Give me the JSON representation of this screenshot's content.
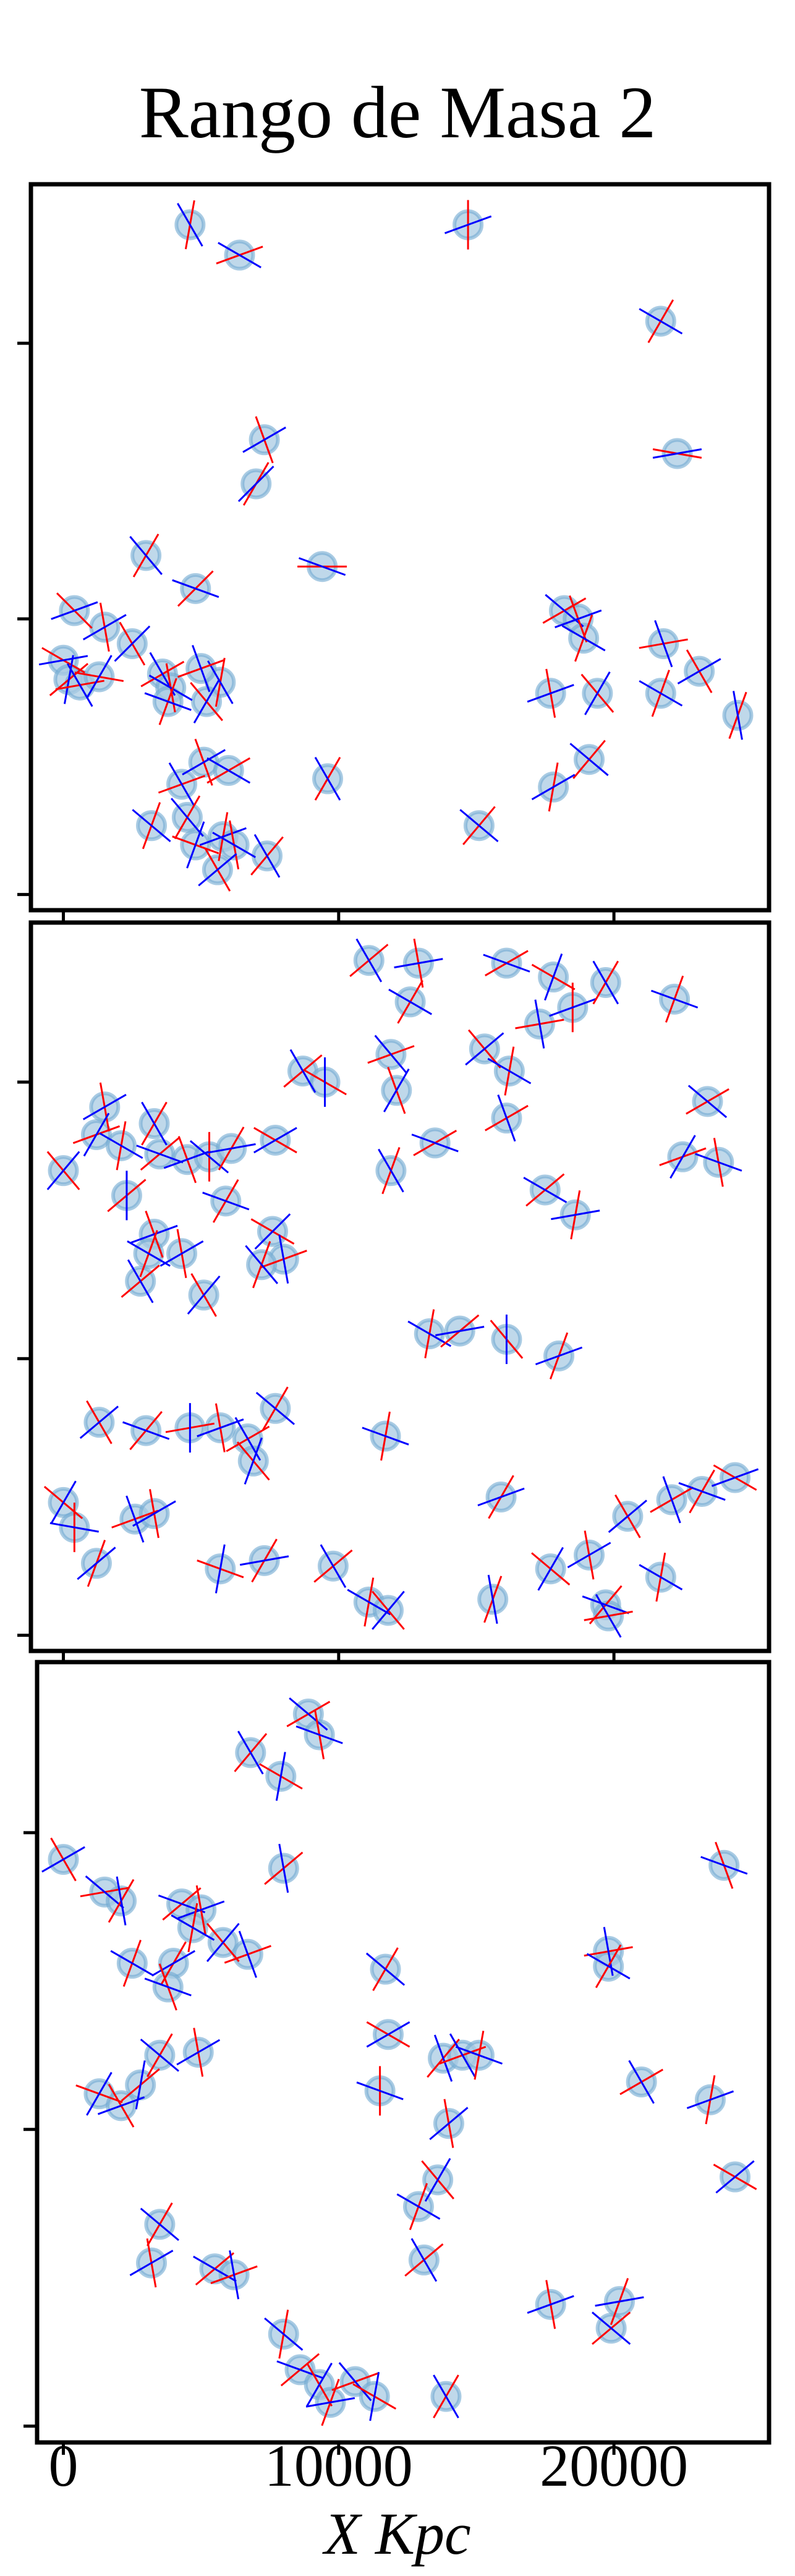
{
  "chart_data": {
    "type": "scatter",
    "title": "Rango de Masa 2",
    "xlabel": "X Kpc",
    "ylabel": "",
    "xlim": [
      -1000,
      25500
    ],
    "ylim": [
      -300,
      25500
    ],
    "x_ticks": [
      0,
      10000,
      20000
    ],
    "x_tick_labels": [
      "0",
      "10000",
      "20000"
    ],
    "y_ticks": [
      0,
      10000,
      20000
    ],
    "grid": false,
    "legend": "none",
    "colors": {
      "marker_fill": "#a9cbe3",
      "marker_edge": "#6fa8d0",
      "red_vector": "#ff0000",
      "blue_vector": "#0000ff",
      "frame": "#000000"
    },
    "panels": [
      {
        "name": "panel-1",
        "points": [
          [
            4600,
            24300,
            80,
            300
          ],
          [
            6400,
            23200,
            20,
            150
          ],
          [
            14700,
            24300,
            90,
            200
          ],
          [
            21700,
            20800,
            60,
            150
          ],
          [
            22300,
            16000,
            170,
            10
          ],
          [
            7300,
            16500,
            110,
            30
          ],
          [
            7000,
            14900,
            60,
            45
          ],
          [
            9400,
            11900,
            0,
            160
          ],
          [
            3000,
            12300,
            60,
            130
          ],
          [
            4800,
            11100,
            45,
            160
          ],
          [
            400,
            10300,
            135,
            20
          ],
          [
            1500,
            9700,
            100,
            30
          ],
          [
            2500,
            9100,
            120,
            45
          ],
          [
            0,
            8500,
            150,
            10
          ],
          [
            200,
            7800,
            40,
            80
          ],
          [
            600,
            7600,
            10,
            120
          ],
          [
            1300,
            7900,
            170,
            60
          ],
          [
            3600,
            8000,
            30,
            120
          ],
          [
            3900,
            7500,
            100,
            150
          ],
          [
            3800,
            7000,
            70,
            160
          ],
          [
            5700,
            7700,
            80,
            120
          ],
          [
            5000,
            8200,
            20,
            110
          ],
          [
            5200,
            7000,
            130,
            60
          ],
          [
            18200,
            10300,
            30,
            140
          ],
          [
            18700,
            10000,
            110,
            20
          ],
          [
            18900,
            9300,
            70,
            150
          ],
          [
            17700,
            7300,
            100,
            20
          ],
          [
            19400,
            7300,
            130,
            60
          ],
          [
            21800,
            9100,
            10,
            110
          ],
          [
            21700,
            7300,
            70,
            150
          ],
          [
            23100,
            8100,
            120,
            30
          ],
          [
            24500,
            6500,
            70,
            100
          ],
          [
            19100,
            4900,
            50,
            140
          ],
          [
            17800,
            3900,
            80,
            30
          ],
          [
            9600,
            4200,
            60,
            120
          ],
          [
            15100,
            2500,
            50,
            140
          ],
          [
            3200,
            2500,
            70,
            140
          ],
          [
            4300,
            4000,
            20,
            120
          ],
          [
            5100,
            4800,
            110,
            30
          ],
          [
            6000,
            4500,
            30,
            150
          ],
          [
            4500,
            2800,
            60,
            130
          ],
          [
            5800,
            2100,
            80,
            20
          ],
          [
            6200,
            1800,
            100,
            150
          ],
          [
            7400,
            1400,
            50,
            120
          ],
          [
            5600,
            900,
            120,
            40
          ],
          [
            4800,
            1800,
            160,
            70
          ]
        ]
      },
      {
        "name": "panel-2",
        "points": [
          [
            11100,
            24400,
            40,
            120
          ],
          [
            12900,
            24300,
            100,
            10
          ],
          [
            12600,
            22900,
            60,
            150
          ],
          [
            11900,
            21000,
            20,
            130
          ],
          [
            12100,
            19700,
            110,
            60
          ],
          [
            16100,
            24300,
            30,
            160
          ],
          [
            17800,
            23800,
            150,
            70
          ],
          [
            18500,
            22700,
            90,
            20
          ],
          [
            19700,
            23600,
            60,
            120
          ],
          [
            17300,
            22100,
            10,
            100
          ],
          [
            15300,
            21200,
            130,
            40
          ],
          [
            16200,
            20400,
            80,
            150
          ],
          [
            16100,
            18700,
            30,
            110
          ],
          [
            22200,
            23000,
            70,
            160
          ],
          [
            8700,
            20400,
            40,
            120
          ],
          [
            9500,
            20000,
            150,
            90
          ],
          [
            1500,
            19100,
            100,
            30
          ],
          [
            1200,
            18100,
            20,
            60
          ],
          [
            2100,
            17700,
            80,
            150
          ],
          [
            0,
            16800,
            130,
            50
          ],
          [
            3300,
            18500,
            60,
            120
          ],
          [
            3500,
            17400,
            40,
            160
          ],
          [
            4500,
            17200,
            110,
            20
          ],
          [
            5300,
            17300,
            90,
            140
          ],
          [
            6100,
            17600,
            60,
            10
          ],
          [
            7700,
            17900,
            150,
            30
          ],
          [
            11900,
            16800,
            70,
            120
          ],
          [
            13500,
            17800,
            30,
            160
          ],
          [
            2300,
            15900,
            40,
            90
          ],
          [
            3300,
            14500,
            110,
            20
          ],
          [
            3100,
            13800,
            70,
            150
          ],
          [
            2800,
            12800,
            40,
            120
          ],
          [
            4300,
            13800,
            100,
            30
          ],
          [
            5900,
            15700,
            60,
            160
          ],
          [
            7600,
            14600,
            150,
            45
          ],
          [
            8000,
            13600,
            20,
            100
          ],
          [
            7200,
            13400,
            70,
            130
          ],
          [
            5100,
            12300,
            120,
            50
          ],
          [
            17500,
            16100,
            40,
            150
          ],
          [
            18600,
            15200,
            80,
            10
          ],
          [
            23400,
            19300,
            30,
            140
          ],
          [
            23800,
            17100,
            100,
            160
          ],
          [
            22500,
            17300,
            20,
            60
          ],
          [
            13300,
            10900,
            80,
            150
          ],
          [
            14400,
            11000,
            40,
            10
          ],
          [
            16100,
            10700,
            130,
            90
          ],
          [
            18000,
            10100,
            70,
            20
          ],
          [
            1300,
            7700,
            120,
            40
          ],
          [
            3000,
            7400,
            50,
            160
          ],
          [
            4600,
            7500,
            10,
            90
          ],
          [
            5700,
            7500,
            100,
            20
          ],
          [
            7700,
            8200,
            60,
            140
          ],
          [
            6700,
            7100,
            30,
            120
          ],
          [
            6900,
            6300,
            130,
            70
          ],
          [
            11700,
            7200,
            80,
            160
          ],
          [
            15900,
            5000,
            60,
            20
          ],
          [
            0,
            4800,
            140,
            60
          ],
          [
            400,
            3900,
            90,
            170
          ],
          [
            1200,
            2600,
            70,
            40
          ],
          [
            2600,
            4200,
            20,
            110
          ],
          [
            3300,
            4400,
            100,
            30
          ],
          [
            5700,
            2400,
            160,
            80
          ],
          [
            7300,
            2700,
            60,
            10
          ],
          [
            9800,
            2500,
            40,
            120
          ],
          [
            11100,
            1200,
            80,
            150
          ],
          [
            11800,
            900,
            130,
            50
          ],
          [
            15600,
            1300,
            70,
            100
          ],
          [
            17700,
            2400,
            140,
            60
          ],
          [
            19100,
            2900,
            100,
            30
          ],
          [
            19700,
            1100,
            50,
            160
          ],
          [
            19800,
            700,
            10,
            120
          ],
          [
            20500,
            4300,
            120,
            40
          ],
          [
            21700,
            2100,
            80,
            150
          ],
          [
            22100,
            4900,
            30,
            110
          ],
          [
            23200,
            5200,
            60,
            160
          ],
          [
            24400,
            5700,
            150,
            20
          ]
        ]
      },
      {
        "name": "panel-3",
        "points": [
          [
            8900,
            24000,
            30,
            140
          ],
          [
            9300,
            23300,
            100,
            160
          ],
          [
            6800,
            22700,
            50,
            120
          ],
          [
            7900,
            21900,
            150,
            80
          ],
          [
            0,
            19100,
            120,
            30
          ],
          [
            1500,
            18000,
            10,
            140
          ],
          [
            2100,
            17700,
            60,
            100
          ],
          [
            4300,
            17600,
            40,
            160
          ],
          [
            5000,
            17400,
            100,
            20
          ],
          [
            4700,
            16800,
            80,
            150
          ],
          [
            5800,
            16300,
            130,
            50
          ],
          [
            6700,
            15900,
            20,
            110
          ],
          [
            2500,
            15600,
            70,
            150
          ],
          [
            4000,
            15600,
            60,
            30
          ],
          [
            3800,
            14800,
            110,
            160
          ],
          [
            8000,
            18800,
            40,
            100
          ],
          [
            3500,
            12500,
            60,
            140
          ],
          [
            4900,
            12600,
            100,
            30
          ],
          [
            1300,
            11200,
            160,
            60
          ],
          [
            2100,
            10800,
            120,
            20
          ],
          [
            2800,
            11500,
            40,
            80
          ],
          [
            11700,
            15400,
            60,
            140
          ],
          [
            11800,
            13200,
            150,
            30
          ],
          [
            11500,
            11300,
            90,
            160
          ],
          [
            13800,
            12400,
            50,
            110
          ],
          [
            14500,
            12500,
            20,
            120
          ],
          [
            15100,
            12500,
            80,
            160
          ],
          [
            14000,
            10200,
            100,
            40
          ],
          [
            13600,
            8300,
            130,
            60
          ],
          [
            12900,
            7400,
            70,
            150
          ],
          [
            13100,
            5600,
            40,
            120
          ],
          [
            19800,
            16000,
            10,
            100
          ],
          [
            19800,
            15500,
            60,
            150
          ],
          [
            21000,
            11600,
            30,
            120
          ],
          [
            23500,
            11000,
            80,
            20
          ],
          [
            24000,
            18900,
            110,
            160
          ],
          [
            24400,
            8400,
            150,
            40
          ],
          [
            3500,
            6800,
            60,
            140
          ],
          [
            3200,
            5500,
            100,
            30
          ],
          [
            5500,
            5300,
            40,
            150
          ],
          [
            6200,
            5100,
            20,
            100
          ],
          [
            8000,
            3100,
            80,
            140
          ],
          [
            8600,
            1900,
            40,
            160
          ],
          [
            9300,
            1400,
            120,
            60
          ],
          [
            9700,
            800,
            70,
            10
          ],
          [
            10600,
            1500,
            20,
            130
          ],
          [
            11300,
            1000,
            150,
            80
          ],
          [
            13900,
            1000,
            60,
            120
          ],
          [
            17700,
            4100,
            100,
            20
          ],
          [
            19900,
            3300,
            40,
            140
          ],
          [
            20200,
            4200,
            70,
            10
          ]
        ]
      }
    ]
  }
}
